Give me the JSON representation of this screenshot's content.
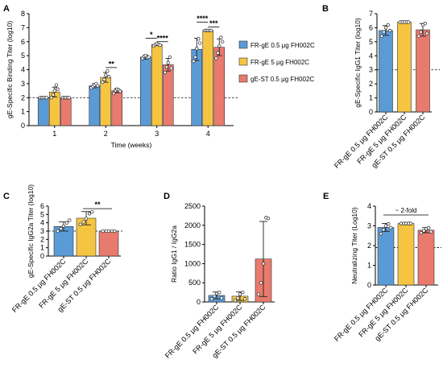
{
  "colors": {
    "s1": "#5b9bd5",
    "s2": "#f5c542",
    "s3": "#e87a6e"
  },
  "chart_data": [
    {
      "panel": "A",
      "type": "bar",
      "ylabel": "gE-Specific Binding Titer (log10)",
      "xlabel": "Time (weeks)",
      "ylim": [
        0,
        8
      ],
      "yticks": [
        "0",
        "1",
        "2",
        "3",
        "4",
        "5",
        "6",
        "7",
        "8"
      ],
      "categories": [
        "1",
        "2",
        "3",
        "4"
      ],
      "reference_line": 2,
      "legend_position": "right",
      "series": [
        {
          "name": "FR-gE 0.5 μg FH002C",
          "values": [
            2.0,
            2.85,
            4.9,
            5.45
          ],
          "errors": [
            0.05,
            0.15,
            0.15,
            0.8
          ],
          "points": [
            [
              2,
              2,
              2,
              2,
              2
            ],
            [
              2.7,
              2.8,
              2.9,
              3.0,
              2.85
            ],
            [
              4.8,
              4.95,
              5.0,
              4.85,
              4.9
            ],
            [
              4.6,
              4.9,
              5.5,
              6.2,
              5.9
            ]
          ]
        },
        {
          "name": "FR-gE 5 μg FH002C",
          "values": [
            2.4,
            3.45,
            5.8,
            6.8
          ],
          "errors": [
            0.35,
            0.35,
            0.08,
            0.02
          ],
          "points": [
            [
              2,
              2.2,
              2.5,
              2.9,
              2.6
            ],
            [
              3.1,
              3.3,
              3.6,
              3.9,
              3.5
            ],
            [
              5.7,
              5.8,
              5.85,
              5.8,
              5.75
            ],
            [
              6.8,
              6.8,
              6.8,
              6.8,
              6.8
            ]
          ]
        },
        {
          "name": "gE-ST 0.5 μg FH002C",
          "values": [
            2.0,
            2.5,
            4.35,
            5.6
          ],
          "errors": [
            0.05,
            0.15,
            0.45,
            0.6
          ],
          "points": [
            [
              2,
              2,
              2,
              2,
              2
            ],
            [
              2.3,
              2.5,
              2.6,
              2.55,
              2.45
            ],
            [
              3.8,
              4.2,
              4.5,
              4.9,
              4.1
            ],
            [
              4.8,
              5.2,
              5.7,
              6.3,
              6.0
            ]
          ]
        }
      ],
      "significance": [
        {
          "category": 1,
          "from": 1,
          "to": 2,
          "label": "**"
        },
        {
          "category": 2,
          "from": 0,
          "to": 1,
          "label": "*"
        },
        {
          "category": 2,
          "from": 1,
          "to": 2,
          "label": "****"
        },
        {
          "category": 3,
          "from": 0,
          "to": 1,
          "label": "****"
        },
        {
          "category": 3,
          "from": 1,
          "to": 2,
          "label": "***"
        }
      ]
    },
    {
      "panel": "B",
      "type": "bar",
      "ylabel": "gE-Specific IgG1 Titer (log10)",
      "ylim": [
        0,
        7
      ],
      "yticks": [
        "0",
        "1",
        "2",
        "3",
        "4",
        "5",
        "6",
        "7"
      ],
      "categories": [
        "FR-gE 0.5 μg FH002C",
        "FR-gE 5 μg FH002C",
        "gE-ST 0.5 μg FH002C"
      ],
      "reference_line": 3,
      "values": [
        5.8,
        6.4,
        5.85
      ],
      "errors": [
        0.35,
        0.02,
        0.45
      ],
      "points": [
        [
          5.4,
          5.7,
          6.0,
          6.2,
          5.8
        ],
        [
          6.4,
          6.4,
          6.4,
          6.4,
          6.4
        ],
        [
          5.4,
          5.7,
          6.2,
          6.3,
          5.6
        ]
      ]
    },
    {
      "panel": "C",
      "type": "bar",
      "ylabel": "gE-Specific IgG2a Titer (log10)",
      "ylim": [
        0,
        6
      ],
      "yticks": [
        "0",
        "1",
        "2",
        "3",
        "4",
        "5",
        "6"
      ],
      "categories": [
        "FR-gE 0.5 μg FH002C",
        "FR-gE 5 μg FH002C",
        "gE-ST 0.5 μg FH002C"
      ],
      "reference_line": 3,
      "values": [
        3.55,
        4.55,
        3.0
      ],
      "errors": [
        0.55,
        0.8,
        0.02
      ],
      "points": [
        [
          3.0,
          3.3,
          3.6,
          4.0,
          4.3
        ],
        [
          3.8,
          4.1,
          4.5,
          5.1,
          5.3
        ],
        [
          3.0,
          3.0,
          3.0,
          3.0,
          3.0
        ]
      ],
      "significance": [
        {
          "from": 1,
          "to": 2,
          "label": "**"
        }
      ]
    },
    {
      "panel": "D",
      "type": "bar",
      "ylabel": "Ratio IgG1 / IgG2a",
      "ylim": [
        0,
        2500
      ],
      "yticks": [
        "0",
        "500",
        "1000",
        "1500",
        "2000",
        "2500"
      ],
      "categories": [
        "FR-gE 0.5 μg FH002C",
        "FR-gE 5 μg FH002C",
        "gE-ST 0.5 μg FH002C"
      ],
      "values": [
        170,
        150,
        1120
      ],
      "errors": [
        90,
        110,
        980
      ],
      "points": [
        [
          80,
          150,
          220,
          250,
          100
        ],
        [
          40,
          100,
          200,
          250,
          80
        ],
        [
          200,
          500,
          1000,
          2200,
          2180
        ]
      ]
    },
    {
      "panel": "E",
      "type": "bar",
      "ylabel": "Neutralizing Titer (Log10)",
      "ylim": [
        0,
        4
      ],
      "yticks": [
        "0",
        "1",
        "2",
        "3",
        "4"
      ],
      "categories": [
        "FR-gE 0.5 μg FH002C",
        "FR-gE 5 μg FH002C",
        "gE-ST 0.5 μg FH002C"
      ],
      "reference_line": 1.9,
      "values": [
        2.92,
        3.12,
        2.78
      ],
      "errors": [
        0.2,
        0.02,
        0.13
      ],
      "points": [
        [
          2.6,
          2.8,
          3.0,
          3.1,
          2.9
        ],
        [
          3.12,
          3.12,
          3.12,
          3.12,
          3.12
        ],
        [
          2.65,
          2.75,
          2.85,
          2.9,
          2.7
        ]
      ],
      "annotation": "~ 2-fold"
    }
  ]
}
